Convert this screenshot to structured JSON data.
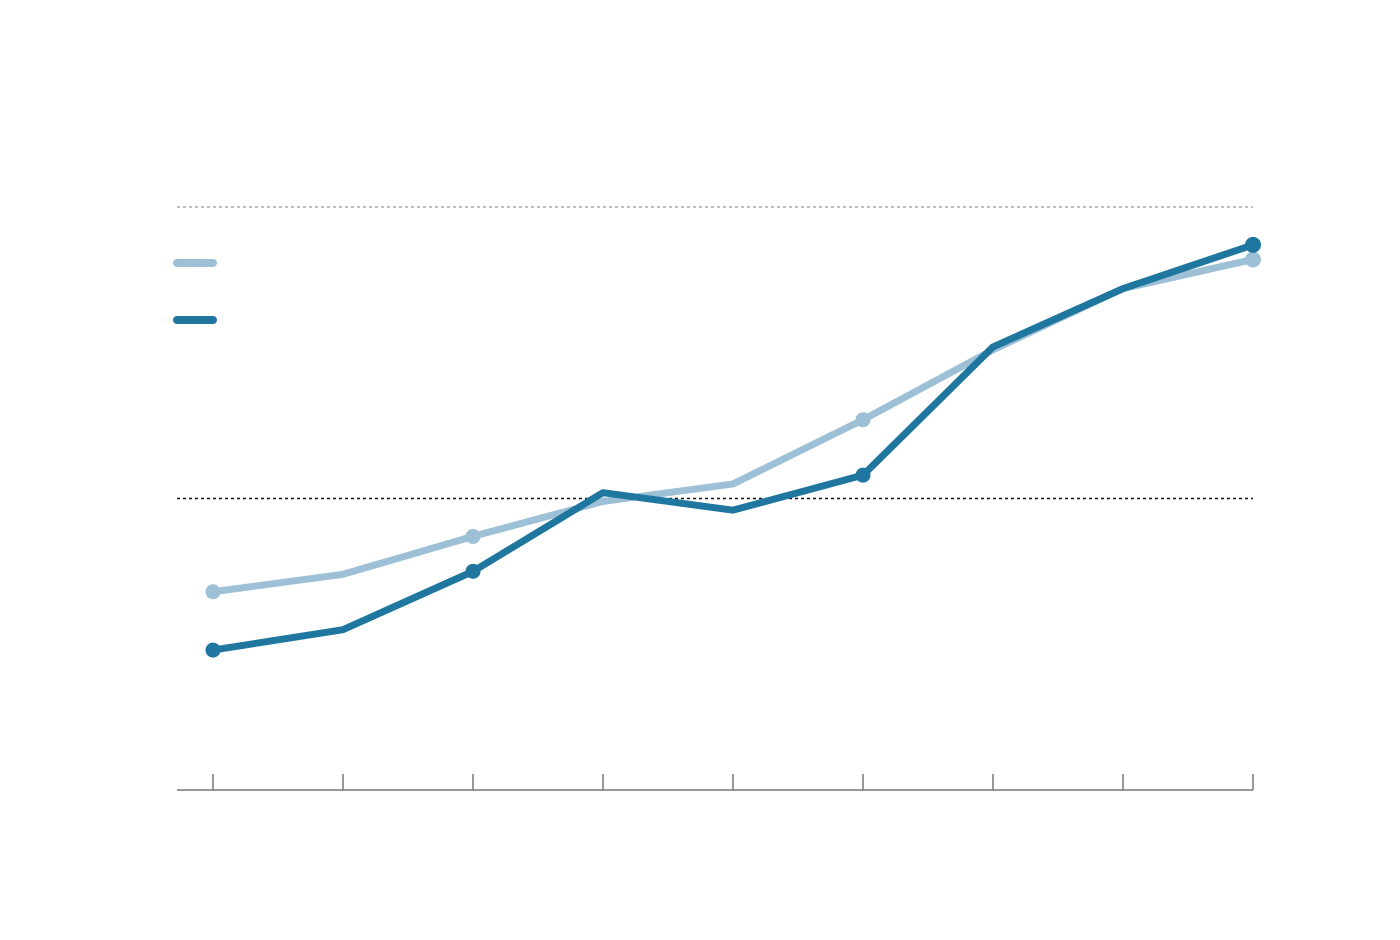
{
  "chart_data": {
    "type": "line",
    "categories": [
      null,
      null,
      null,
      null,
      null,
      null,
      null,
      null,
      null
    ],
    "series": [
      {
        "color": "#9dc0d6",
        "values": [
          0.68,
          0.74,
          0.87,
          0.99,
          1.05,
          1.27,
          1.51,
          1.72,
          1.82
        ]
      },
      {
        "color": "#1f769e",
        "values": [
          0.48,
          0.55,
          0.75,
          1.02,
          0.96,
          1.08,
          1.52,
          1.72,
          1.87
        ]
      }
    ],
    "ylim": [
      0,
      2
    ],
    "yticks": [
      1,
      2
    ],
    "grid": true,
    "legend": "top-left"
  }
}
